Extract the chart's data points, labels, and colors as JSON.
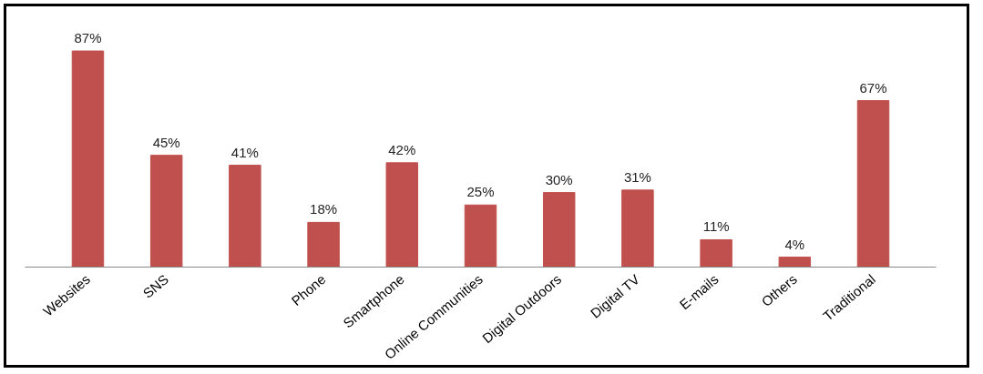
{
  "chart_data": {
    "type": "bar",
    "categories": [
      "Websites",
      "SNS",
      null,
      "Phone",
      "Smartphone",
      "Online Communities",
      "Digital Outdoors",
      "Digital TV",
      "E-mails",
      "Others",
      "Traditional"
    ],
    "values": [
      87,
      45,
      41,
      18,
      42,
      25,
      30,
      31,
      11,
      4,
      67
    ],
    "value_labels": [
      "87%",
      "45%",
      "41%",
      "18%",
      "42%",
      "25%",
      "30%",
      "31%",
      "11%",
      "4%",
      "67%"
    ],
    "color": "#c0504d",
    "grid": false,
    "tick_labels": "x"
  }
}
